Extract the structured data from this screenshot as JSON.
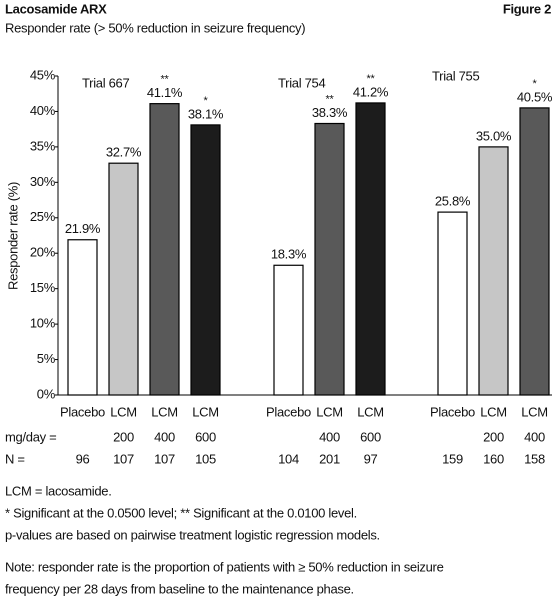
{
  "header": {
    "title": "Lacosamide ARX",
    "figure": "Figure 2",
    "subtitle": "Responder rate (> 50% reduction in seizure frequency)"
  },
  "chart_data": {
    "type": "bar",
    "y_label": "Responder rate (%)",
    "ylim": [
      0,
      45
    ],
    "yticks": [
      {
        "value": 0,
        "label": "0%"
      },
      {
        "value": 5,
        "label": "5%"
      },
      {
        "value": 10,
        "label": "10%"
      },
      {
        "value": 15,
        "label": "15%"
      },
      {
        "value": 20,
        "label": "20%"
      },
      {
        "value": 25,
        "label": "25%"
      },
      {
        "value": 30,
        "label": "30%"
      },
      {
        "value": 35,
        "label": "35%"
      },
      {
        "value": 40,
        "label": "40%"
      },
      {
        "value": 45,
        "label": "45%"
      }
    ],
    "row_labels": {
      "dose": "mg/day =",
      "n": "N ="
    },
    "groups": [
      {
        "name": "Trial 667",
        "categories": [
          "Placebo",
          "LCM",
          "LCM",
          "LCM"
        ],
        "doses": [
          null,
          200,
          400,
          600
        ],
        "n": [
          96,
          107,
          107,
          105
        ],
        "values": [
          21.9,
          32.7,
          41.1,
          38.1
        ],
        "value_labels": [
          "21.9%",
          "32.7%",
          "41.1%",
          "38.1%"
        ],
        "significance": [
          null,
          null,
          "**",
          "*"
        ],
        "colors": [
          "#ffffff",
          "#c6c6c6",
          "#595959",
          "#1c1c1c"
        ]
      },
      {
        "name": "Trial 754",
        "categories": [
          "Placebo",
          "LCM",
          "LCM"
        ],
        "doses": [
          null,
          400,
          600
        ],
        "n": [
          104,
          201,
          97
        ],
        "values": [
          18.3,
          38.3,
          41.2
        ],
        "value_labels": [
          "18.3%",
          "38.3%",
          "41.2%"
        ],
        "significance": [
          null,
          "**",
          "**"
        ],
        "colors": [
          "#ffffff",
          "#595959",
          "#1c1c1c"
        ]
      },
      {
        "name": "Trial 755",
        "categories": [
          "Placebo",
          "LCM",
          "LCM"
        ],
        "doses": [
          null,
          200,
          400
        ],
        "n": [
          159,
          160,
          158
        ],
        "values": [
          25.8,
          35.0,
          40.5
        ],
        "value_labels": [
          "25.8%",
          "35.0%",
          "40.5%"
        ],
        "significance": [
          null,
          null,
          "*"
        ],
        "colors": [
          "#ffffff",
          "#c6c6c6",
          "#595959"
        ]
      }
    ]
  },
  "notes": [
    "LCM = lacosamide.",
    "* Significant at the 0.0500 level;  ** Significant at the 0.0100 level.",
    "p-values are based on pairwise treatment logistic regression models.",
    "Note: responder rate is the proportion of patients with ≥ 50% reduction in seizure",
    "frequency per 28 days from baseline to the maintenance phase."
  ]
}
